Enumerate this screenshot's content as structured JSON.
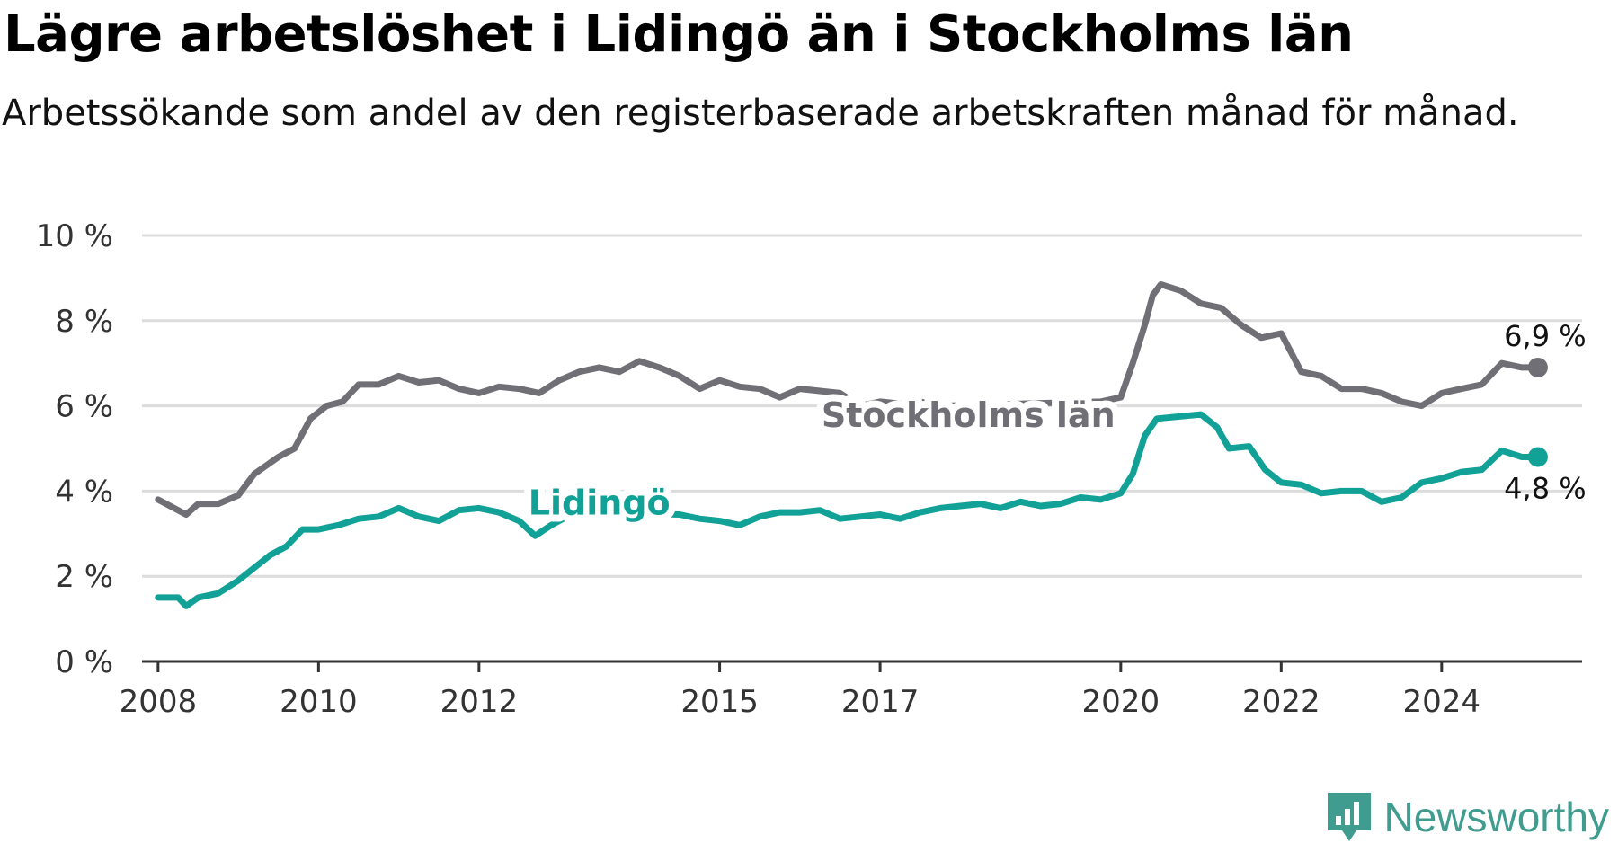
{
  "title": "Lägre arbetslöshet i Lidingö än i Stockholms län",
  "subtitle": "Arbetssökande som andel av den registerbaserade arbetskraften månad för månad.",
  "brand": {
    "name": "Newsworthy",
    "icon": "newsworthy-logo-icon",
    "color": "#3f9c8f"
  },
  "chart_data": {
    "type": "line",
    "title": "Lägre arbetslöshet i Lidingö än i Stockholms län",
    "xlabel": "",
    "ylabel": "",
    "ylim": [
      0,
      10
    ],
    "xlim": [
      2007.8,
      2025.75
    ],
    "y_ticks": [
      0,
      2,
      4,
      6,
      8,
      10
    ],
    "y_tick_labels": [
      "0 %",
      "2 %",
      "4 %",
      "6 %",
      "8 %",
      "10 %"
    ],
    "x_ticks": [
      2008,
      2010,
      2012,
      2015,
      2017,
      2020,
      2022,
      2024
    ],
    "x_tick_labels": [
      "2008",
      "2010",
      "2012",
      "2015",
      "2017",
      "2020",
      "2022",
      "2024"
    ],
    "grid": true,
    "series": [
      {
        "name": "Stockholms län",
        "color": "#6f6f75",
        "end_label": "6,9 %",
        "points": [
          [
            2008.0,
            3.8
          ],
          [
            2008.2,
            3.6
          ],
          [
            2008.35,
            3.45
          ],
          [
            2008.5,
            3.7
          ],
          [
            2008.75,
            3.7
          ],
          [
            2009.0,
            3.9
          ],
          [
            2009.2,
            4.4
          ],
          [
            2009.5,
            4.8
          ],
          [
            2009.7,
            5.0
          ],
          [
            2009.9,
            5.7
          ],
          [
            2010.1,
            6.0
          ],
          [
            2010.3,
            6.1
          ],
          [
            2010.5,
            6.5
          ],
          [
            2010.75,
            6.5
          ],
          [
            2011.0,
            6.7
          ],
          [
            2011.25,
            6.55
          ],
          [
            2011.5,
            6.6
          ],
          [
            2011.75,
            6.4
          ],
          [
            2012.0,
            6.3
          ],
          [
            2012.25,
            6.45
          ],
          [
            2012.5,
            6.4
          ],
          [
            2012.75,
            6.3
          ],
          [
            2013.0,
            6.6
          ],
          [
            2013.25,
            6.8
          ],
          [
            2013.5,
            6.9
          ],
          [
            2013.75,
            6.8
          ],
          [
            2014.0,
            7.05
          ],
          [
            2014.25,
            6.9
          ],
          [
            2014.5,
            6.7
          ],
          [
            2014.75,
            6.4
          ],
          [
            2015.0,
            6.6
          ],
          [
            2015.25,
            6.45
          ],
          [
            2015.5,
            6.4
          ],
          [
            2015.75,
            6.2
          ],
          [
            2016.0,
            6.4
          ],
          [
            2016.25,
            6.35
          ],
          [
            2016.5,
            6.3
          ],
          [
            2016.75,
            6.0
          ],
          [
            2017.0,
            6.1
          ],
          [
            2017.25,
            6.05
          ],
          [
            2017.5,
            6.1
          ],
          [
            2017.75,
            6.0
          ],
          [
            2019.75,
            6.1
          ],
          [
            2020.0,
            6.2
          ],
          [
            2020.15,
            7.0
          ],
          [
            2020.3,
            7.9
          ],
          [
            2020.4,
            8.6
          ],
          [
            2020.5,
            8.85
          ],
          [
            2020.75,
            8.7
          ],
          [
            2021.0,
            8.4
          ],
          [
            2021.25,
            8.3
          ],
          [
            2021.5,
            7.9
          ],
          [
            2021.75,
            7.6
          ],
          [
            2022.0,
            7.7
          ],
          [
            2022.25,
            6.8
          ],
          [
            2022.5,
            6.7
          ],
          [
            2022.75,
            6.4
          ],
          [
            2023.0,
            6.4
          ],
          [
            2023.25,
            6.3
          ],
          [
            2023.5,
            6.1
          ],
          [
            2023.75,
            6.0
          ],
          [
            2024.0,
            6.3
          ],
          [
            2024.25,
            6.4
          ],
          [
            2024.5,
            6.5
          ],
          [
            2024.75,
            7.0
          ],
          [
            2025.0,
            6.9
          ],
          [
            2025.2,
            6.9
          ]
        ]
      },
      {
        "name": "Lidingö",
        "color": "#12a196",
        "end_label": "4,8 %",
        "points": [
          [
            2008.0,
            1.5
          ],
          [
            2008.25,
            1.5
          ],
          [
            2008.35,
            1.3
          ],
          [
            2008.5,
            1.5
          ],
          [
            2008.75,
            1.6
          ],
          [
            2009.0,
            1.9
          ],
          [
            2009.2,
            2.2
          ],
          [
            2009.4,
            2.5
          ],
          [
            2009.6,
            2.7
          ],
          [
            2009.8,
            3.1
          ],
          [
            2010.0,
            3.1
          ],
          [
            2010.25,
            3.2
          ],
          [
            2010.5,
            3.35
          ],
          [
            2010.75,
            3.4
          ],
          [
            2011.0,
            3.6
          ],
          [
            2011.25,
            3.4
          ],
          [
            2011.5,
            3.3
          ],
          [
            2011.75,
            3.55
          ],
          [
            2012.0,
            3.6
          ],
          [
            2012.25,
            3.5
          ],
          [
            2012.5,
            3.3
          ],
          [
            2012.7,
            2.95
          ],
          [
            2012.9,
            3.2
          ],
          [
            2013.1,
            3.4
          ],
          [
            2013.25,
            3.5
          ],
          [
            2014.5,
            3.45
          ],
          [
            2014.75,
            3.35
          ],
          [
            2015.0,
            3.3
          ],
          [
            2015.25,
            3.2
          ],
          [
            2015.5,
            3.4
          ],
          [
            2015.75,
            3.5
          ],
          [
            2016.0,
            3.5
          ],
          [
            2016.25,
            3.55
          ],
          [
            2016.5,
            3.35
          ],
          [
            2016.75,
            3.4
          ],
          [
            2017.0,
            3.45
          ],
          [
            2017.25,
            3.35
          ],
          [
            2017.5,
            3.5
          ],
          [
            2017.75,
            3.6
          ],
          [
            2018.0,
            3.65
          ],
          [
            2018.25,
            3.7
          ],
          [
            2018.5,
            3.6
          ],
          [
            2018.75,
            3.75
          ],
          [
            2019.0,
            3.65
          ],
          [
            2019.25,
            3.7
          ],
          [
            2019.5,
            3.85
          ],
          [
            2019.75,
            3.8
          ],
          [
            2020.0,
            3.95
          ],
          [
            2020.15,
            4.4
          ],
          [
            2020.3,
            5.3
          ],
          [
            2020.45,
            5.7
          ],
          [
            2021.0,
            5.8
          ],
          [
            2021.2,
            5.5
          ],
          [
            2021.35,
            5.0
          ],
          [
            2021.6,
            5.05
          ],
          [
            2021.8,
            4.5
          ],
          [
            2022.0,
            4.2
          ],
          [
            2022.25,
            4.15
          ],
          [
            2022.5,
            3.95
          ],
          [
            2022.75,
            4.0
          ],
          [
            2023.0,
            4.0
          ],
          [
            2023.25,
            3.75
          ],
          [
            2023.5,
            3.85
          ],
          [
            2023.75,
            4.2
          ],
          [
            2024.0,
            4.3
          ],
          [
            2024.25,
            4.45
          ],
          [
            2024.5,
            4.5
          ],
          [
            2024.75,
            4.95
          ],
          [
            2025.0,
            4.8
          ],
          [
            2025.2,
            4.8
          ]
        ]
      }
    ]
  }
}
